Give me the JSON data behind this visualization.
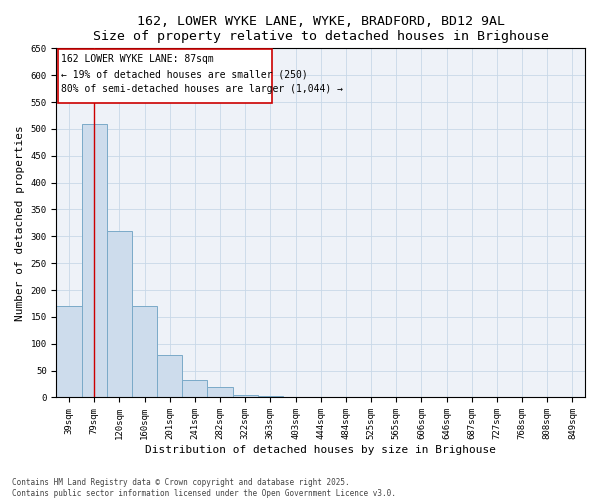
{
  "title_line1": "162, LOWER WYKE LANE, WYKE, BRADFORD, BD12 9AL",
  "title_line2": "Size of property relative to detached houses in Brighouse",
  "xlabel": "Distribution of detached houses by size in Brighouse",
  "ylabel": "Number of detached properties",
  "bar_labels": [
    "39sqm",
    "79sqm",
    "120sqm",
    "160sqm",
    "201sqm",
    "241sqm",
    "282sqm",
    "322sqm",
    "363sqm",
    "403sqm",
    "444sqm",
    "484sqm",
    "525sqm",
    "565sqm",
    "606sqm",
    "646sqm",
    "687sqm",
    "727sqm",
    "768sqm",
    "808sqm",
    "849sqm"
  ],
  "bar_values": [
    170,
    510,
    310,
    170,
    80,
    33,
    20,
    5,
    2,
    1,
    1,
    0,
    0,
    0,
    0,
    0,
    0,
    0,
    0,
    0,
    0
  ],
  "bar_color": "#cddcec",
  "bar_edge_color": "#7aaac8",
  "annotation_line1": "162 LOWER WYKE LANE: 87sqm",
  "annotation_line2": "← 19% of detached houses are smaller (250)",
  "annotation_line3": "80% of semi-detached houses are larger (1,044) →",
  "vline_color": "#cc0000",
  "box_edge_color": "#cc0000",
  "ylim": [
    0,
    650
  ],
  "yticks": [
    0,
    50,
    100,
    150,
    200,
    250,
    300,
    350,
    400,
    450,
    500,
    550,
    600,
    650
  ],
  "grid_color": "#c8d8e8",
  "bg_color": "#eef2f8",
  "footer_line1": "Contains HM Land Registry data © Crown copyright and database right 2025.",
  "footer_line2": "Contains public sector information licensed under the Open Government Licence v3.0.",
  "title_fontsize": 9.5,
  "tick_fontsize": 6.5,
  "label_fontsize": 8,
  "annot_fontsize": 7,
  "footer_fontsize": 5.5
}
